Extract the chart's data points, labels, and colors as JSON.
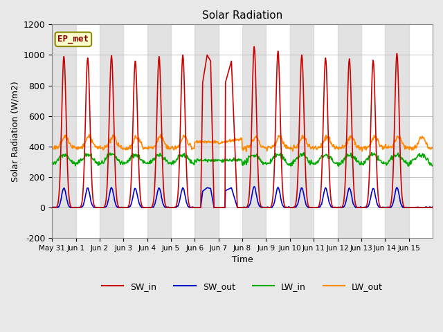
{
  "title": "Solar Radiation",
  "xlabel": "Time",
  "ylabel": "Solar Radiation (W/m2)",
  "ylim": [
    -200,
    1200
  ],
  "yticks": [
    -200,
    0,
    200,
    400,
    600,
    800,
    1000,
    1200
  ],
  "xtick_labels": [
    "May 31",
    "Jun 1",
    "Jun 2",
    "Jun 3",
    "Jun 4",
    "Jun 5",
    "Jun 6",
    "Jun 7",
    "Jun 8",
    "Jun 9",
    "Jun 10",
    "Jun 11",
    "Jun 12",
    "Jun 13",
    "Jun 14",
    "Jun 15"
  ],
  "colors": {
    "SW_in": "#cc0000",
    "SW_out": "#0000cc",
    "LW_in": "#00aa00",
    "LW_out": "#ff8800"
  },
  "fig_bg_color": "#e8e8e8",
  "plot_bg": "#ffffff",
  "ep_met_bg": "#ffffcc",
  "ep_met_text": "#880000",
  "ep_met_border": "#888800",
  "num_days": 16,
  "dt": 0.5
}
